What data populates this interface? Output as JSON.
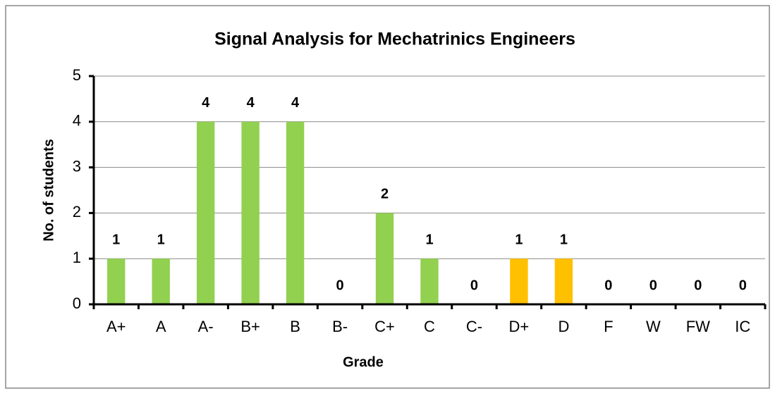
{
  "chart_data": {
    "type": "bar",
    "title": "Signal Analysis for Mechatrinics Engineers",
    "x_label": "Grade",
    "y_label": "No. of students",
    "categories": [
      "A+",
      "A",
      "A-",
      "B+",
      "B",
      "B-",
      "C+",
      "C",
      "C-",
      "D+",
      "D",
      "F",
      "W",
      "FW",
      "IC"
    ],
    "values": [
      1,
      1,
      4,
      4,
      4,
      0,
      2,
      1,
      0,
      1,
      1,
      0,
      0,
      0,
      0
    ],
    "colors": [
      "#92d050",
      "#92d050",
      "#92d050",
      "#92d050",
      "#92d050",
      "#92d050",
      "#92d050",
      "#92d050",
      "#92d050",
      "#ffc000",
      "#ffc000",
      "#92d050",
      "#92d050",
      "#92d050",
      "#92d050"
    ],
    "ylim": [
      0,
      5
    ],
    "yticks": [
      0,
      1,
      2,
      3,
      4,
      5
    ],
    "grid": true,
    "data_labels": true
  }
}
